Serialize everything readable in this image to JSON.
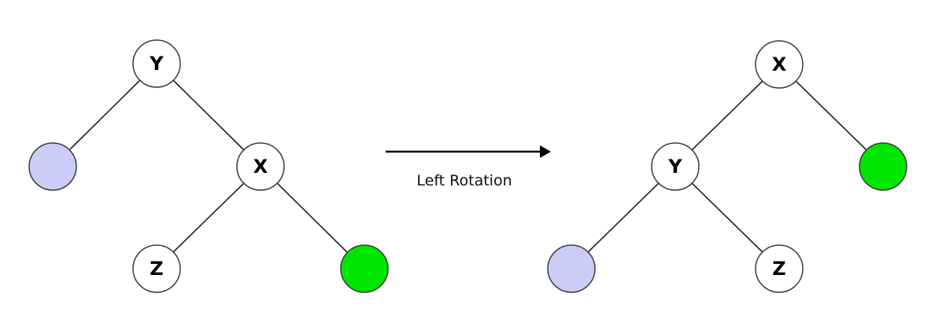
{
  "colors": {
    "node_fill": "#ffffff",
    "subtree_lavender": "#ccccf7",
    "subtree_green": "#00e600",
    "edge": "#222222",
    "arrow": "#000000"
  },
  "before_tree": {
    "root": "Y",
    "right_child": "X",
    "right_left_child": "Z"
  },
  "arrow": {
    "label": "Left Rotation"
  },
  "after_tree": {
    "root": "X",
    "left_child": "Y",
    "left_right_child": "Z"
  }
}
